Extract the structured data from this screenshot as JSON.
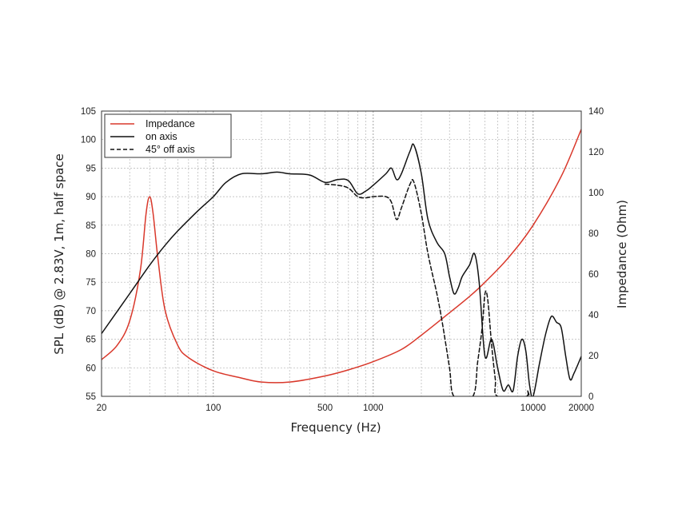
{
  "chart_data": {
    "type": "line",
    "title": "",
    "xlabel": "Frequency (Hz)",
    "ylabel": "SPL (dB) @ 2.83V, 1m, half space",
    "y2label": "Impedance (Ohm)",
    "xscale": "log",
    "xlim": [
      20,
      20000
    ],
    "ylim": [
      55,
      105
    ],
    "y2lim": [
      0,
      140
    ],
    "grid": true,
    "legend_position": "top-left",
    "x_ticks": [
      {
        "value": 20,
        "label": "20"
      },
      {
        "value": 100,
        "label": "100"
      },
      {
        "value": 500,
        "label": "500"
      },
      {
        "value": 1000,
        "label": "1000"
      },
      {
        "value": 10000,
        "label": "10000"
      },
      {
        "value": 20000,
        "label": "20000"
      }
    ],
    "y_ticks": [
      55,
      60,
      65,
      70,
      75,
      80,
      85,
      90,
      95,
      100,
      105
    ],
    "y2_ticks": [
      0,
      20,
      40,
      60,
      80,
      100,
      120,
      140
    ],
    "series": [
      {
        "name": "Impedance",
        "axis": "right",
        "color": "#d9382b",
        "dash": "solid",
        "points": [
          [
            20,
            18
          ],
          [
            25,
            25
          ],
          [
            30,
            37
          ],
          [
            35,
            62
          ],
          [
            38,
            90
          ],
          [
            40,
            98
          ],
          [
            42,
            90
          ],
          [
            45,
            68
          ],
          [
            50,
            42
          ],
          [
            60,
            25
          ],
          [
            70,
            19
          ],
          [
            100,
            12.5
          ],
          [
            150,
            9
          ],
          [
            200,
            7
          ],
          [
            300,
            7
          ],
          [
            500,
            10
          ],
          [
            700,
            13
          ],
          [
            1000,
            17
          ],
          [
            1500,
            23
          ],
          [
            2000,
            30
          ],
          [
            3000,
            41
          ],
          [
            4000,
            49
          ],
          [
            5000,
            56
          ],
          [
            7000,
            68
          ],
          [
            10000,
            84
          ],
          [
            15000,
            108
          ],
          [
            20000,
            131
          ]
        ]
      },
      {
        "name": "on axis",
        "axis": "left",
        "color": "#111111",
        "dash": "solid",
        "points": [
          [
            20,
            66
          ],
          [
            30,
            73
          ],
          [
            40,
            78
          ],
          [
            50,
            81.5
          ],
          [
            60,
            84
          ],
          [
            80,
            87.5
          ],
          [
            100,
            90
          ],
          [
            120,
            92.5
          ],
          [
            150,
            94
          ],
          [
            200,
            94
          ],
          [
            250,
            94.3
          ],
          [
            300,
            94
          ],
          [
            400,
            93.8
          ],
          [
            500,
            92.5
          ],
          [
            600,
            93
          ],
          [
            700,
            92.8
          ],
          [
            800,
            90.5
          ],
          [
            900,
            91
          ],
          [
            1000,
            92
          ],
          [
            1200,
            94
          ],
          [
            1300,
            95
          ],
          [
            1400,
            93
          ],
          [
            1500,
            94
          ],
          [
            1700,
            98
          ],
          [
            1800,
            99
          ],
          [
            2000,
            94
          ],
          [
            2200,
            86
          ],
          [
            2500,
            82
          ],
          [
            2800,
            80
          ],
          [
            3000,
            76
          ],
          [
            3200,
            73
          ],
          [
            3400,
            74
          ],
          [
            3600,
            76
          ],
          [
            4000,
            78
          ],
          [
            4300,
            80
          ],
          [
            4600,
            75
          ],
          [
            5000,
            62
          ],
          [
            5500,
            65
          ],
          [
            6000,
            60
          ],
          [
            6500,
            56
          ],
          [
            7000,
            57
          ],
          [
            7500,
            56
          ],
          [
            8000,
            62
          ],
          [
            8500,
            65
          ],
          [
            9000,
            63
          ],
          [
            9500,
            57
          ],
          [
            10000,
            55
          ],
          [
            11000,
            61
          ],
          [
            12000,
            66
          ],
          [
            13000,
            69
          ],
          [
            14000,
            68
          ],
          [
            15000,
            67
          ],
          [
            16000,
            62
          ],
          [
            17000,
            58
          ],
          [
            18000,
            59
          ],
          [
            20000,
            62
          ]
        ]
      },
      {
        "name": "45° off axis",
        "axis": "left",
        "color": "#111111",
        "dash": "dashed",
        "points": [
          [
            500,
            92.2
          ],
          [
            600,
            92
          ],
          [
            700,
            91.5
          ],
          [
            800,
            90
          ],
          [
            900,
            89.8
          ],
          [
            1000,
            90
          ],
          [
            1200,
            90
          ],
          [
            1300,
            89
          ],
          [
            1400,
            86
          ],
          [
            1500,
            88
          ],
          [
            1700,
            92.2
          ],
          [
            1800,
            92.5
          ],
          [
            2000,
            87
          ],
          [
            2200,
            80
          ],
          [
            2500,
            73
          ],
          [
            2700,
            68
          ],
          [
            3000,
            60
          ],
          [
            3200,
            55
          ],
          [
            4200,
            55
          ],
          [
            4500,
            61
          ],
          [
            4800,
            67
          ],
          [
            5000,
            73
          ],
          [
            5200,
            72
          ],
          [
            5500,
            64
          ],
          [
            5800,
            58
          ],
          [
            6000,
            55
          ],
          [
            9000,
            55
          ],
          [
            9200,
            56
          ],
          [
            9500,
            55
          ]
        ]
      }
    ]
  }
}
